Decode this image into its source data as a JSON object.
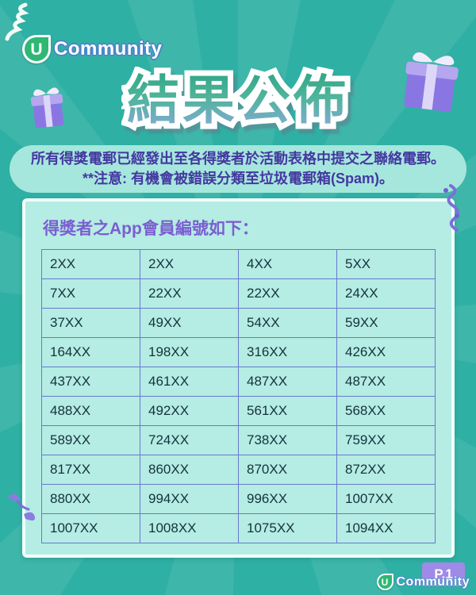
{
  "brand": {
    "badge_letter": "U",
    "name": "Community"
  },
  "title": "結果公佈",
  "notice": {
    "line1": "所有得獎電郵已經發出至各得獎者於活動表格中提交之聯絡電郵。",
    "line2": "**注意: 有機會被錯誤分類至垃圾電郵箱(Spam)。"
  },
  "card": {
    "heading": "得獎者之App會員編號如下：",
    "winner_ids": [
      [
        "2XX",
        "2XX",
        "4XX",
        "5XX"
      ],
      [
        "7XX",
        "22XX",
        "22XX",
        "24XX"
      ],
      [
        "37XX",
        "49XX",
        "54XX",
        "59XX"
      ],
      [
        "164XX",
        "198XX",
        "316XX",
        "426XX"
      ],
      [
        "437XX",
        "461XX",
        "487XX",
        "487XX"
      ],
      [
        "488XX",
        "492XX",
        "561XX",
        "568XX"
      ],
      [
        "589XX",
        "724XX",
        "738XX",
        "759XX"
      ],
      [
        "817XX",
        "860XX",
        "870XX",
        "872XX"
      ],
      [
        "880XX",
        "994XX",
        "996XX",
        "1007XX"
      ],
      [
        "1007XX",
        "1008XX",
        "1075XX",
        "1094XX"
      ]
    ]
  },
  "footer": {
    "page_label": "P.1",
    "badge_letter": "U",
    "brand_name": "Community"
  },
  "colors": {
    "background_teal": "#2fb0a4",
    "banner_mint": "#a5e7dd",
    "banner_text_indigo": "#4438a0",
    "card_mint": "#b5ece4",
    "card_border_white": "#f2fffc",
    "table_border_blue": "#6679cd",
    "table_text": "#14333c",
    "heading_purple": "#7b5ed0",
    "title_gradient_top": "#2aa482",
    "title_gradient_bottom": "#90a8e0",
    "page_badge_purple": "#a08ae8",
    "logo_green": "#2eb874",
    "logo_outline_blue": "#4b86c8",
    "gift_purple": "#8a76e3"
  }
}
